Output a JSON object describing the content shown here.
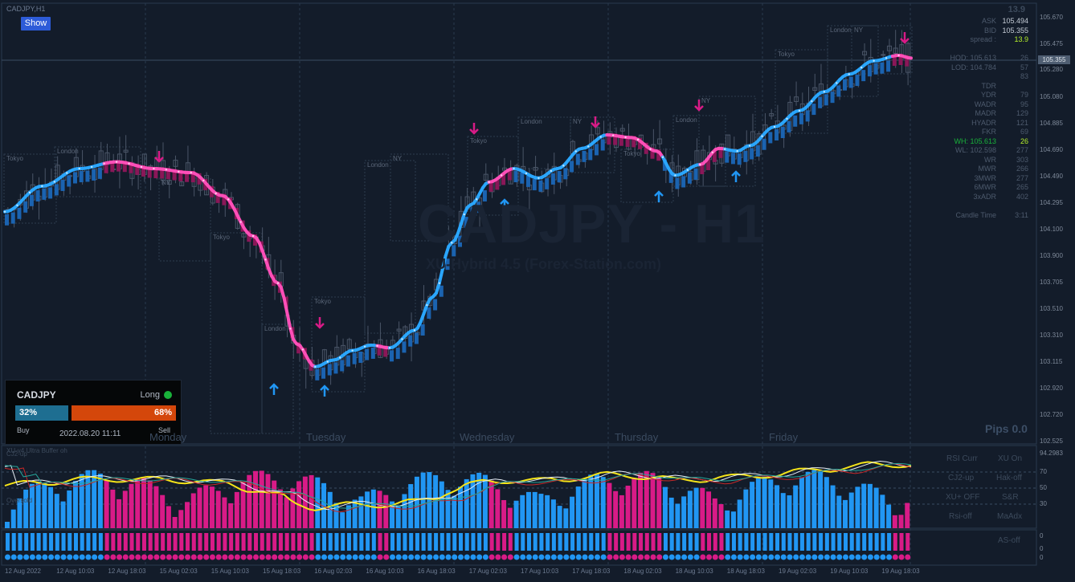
{
  "window_title": "CADJPY,H1",
  "show_button": "Show",
  "watermark": {
    "symbol": "CADJPY - H1",
    "subtitle": "XU-Hybrid 4.5 (Forex-Station.com)"
  },
  "panel": {
    "symbol": "CADJPY",
    "direction": "Long",
    "buy_pct": "32%",
    "sell_pct": "68%",
    "buy_label": "Buy",
    "sell_label": "Sell",
    "timestamp": "2022.08.20 11:11",
    "buy_color": "#1e6e91",
    "sell_color": "#d4470b",
    "direction_dot_color": "#19b23a"
  },
  "pips": "Pips 0.0",
  "stats": {
    "spread_top": "13.9",
    "rows": [
      {
        "k": "ASK",
        "v": "105.494"
      },
      {
        "k": "BID",
        "v": "105.355"
      },
      {
        "k": "spread :",
        "v": "13.9"
      },
      {
        "k": "",
        "v": ""
      },
      {
        "k": "HOD: 105.613",
        "v": "26"
      },
      {
        "k": "LOD: 104.784",
        "v": "57"
      },
      {
        "k": "",
        "v": "83"
      },
      {
        "k": "TDR",
        "v": ""
      },
      {
        "k": "YDR",
        "v": "79"
      },
      {
        "k": "WADR",
        "v": "95"
      },
      {
        "k": "MADR",
        "v": "129"
      },
      {
        "k": "HYADR",
        "v": "121"
      },
      {
        "k": "FKR",
        "v": "69"
      },
      {
        "k": "WH: 105.613",
        "v": "26"
      },
      {
        "k": "WL: 102.598",
        "v": "277"
      },
      {
        "k": "WR",
        "v": "303"
      },
      {
        "k": "MWR",
        "v": "266"
      },
      {
        "k": "3MWR",
        "v": "277"
      },
      {
        "k": "6MWR",
        "v": "265"
      },
      {
        "k": "3xADR",
        "v": "402"
      },
      {
        "k": "",
        "v": ""
      },
      {
        "k": "Candle Time",
        "v": "3:11"
      }
    ]
  },
  "price_axis": [
    "105.670",
    "105.475",
    "105.280",
    "105.080",
    "104.885",
    "104.690",
    "104.490",
    "104.295",
    "104.100",
    "103.900",
    "103.705",
    "103.510",
    "103.310",
    "103.115",
    "102.920",
    "102.720",
    "102.525"
  ],
  "current_price": "105.355",
  "day_labels": [
    "Monday",
    "Tuesday",
    "Wednesday",
    "Thursday",
    "Friday"
  ],
  "date_axis": [
    "12 Aug 2022",
    "12 Aug 10:03",
    "12 Aug 18:03",
    "15 Aug 02:03",
    "15 Aug 10:03",
    "15 Aug 18:03",
    "16 Aug 02:03",
    "16 Aug 10:03",
    "16 Aug 18:03",
    "17 Aug 02:03",
    "17 Aug 10:03",
    "17 Aug 18:03",
    "18 Aug 02:03",
    "18 Aug 10:03",
    "18 Aug 18:03",
    "19 Aug 02:03",
    "19 Aug 10:03",
    "19 Aug 18:03"
  ],
  "sessions": [
    {
      "label": "Tokyo"
    },
    {
      "label": "London"
    },
    {
      "label": "NY"
    },
    {
      "label": "Tokyo"
    },
    {
      "label": "London"
    },
    {
      "label": "Tokyo"
    },
    {
      "label": "London"
    },
    {
      "label": "NY"
    },
    {
      "label": "Tokyo"
    },
    {
      "label": "London"
    },
    {
      "label": "NY"
    },
    {
      "label": "Tokyo"
    },
    {
      "label": "London"
    },
    {
      "label": "NY"
    },
    {
      "label": "Tokyo"
    },
    {
      "label": "London"
    },
    {
      "label": "NY"
    }
  ],
  "oscillator": {
    "levels": [
      "70",
      "50",
      "30"
    ],
    "top_label": "XU-v4 Ultra Buffer oh",
    "mid_label": "CJ2-up",
    "oversold_label": "Oversold",
    "controls": [
      "RSI Curr",
      "XU On",
      "CJ2-up",
      "Hak-off",
      "XU+ OFF",
      "S&R",
      "Rsi-off",
      "MaAdx"
    ]
  },
  "strip_label": "AS-off",
  "strip_axis": [
    "0",
    "0",
    "0"
  ],
  "osc_right_top": "94.2983",
  "colors": {
    "bull": "#2196f3",
    "bear": "#d81b87",
    "trend_up": "#2aa6ff",
    "trend_down": "#ff4fb8",
    "yellow": "#f5e419",
    "grid": "#2a3a4e"
  },
  "arrows": [
    {
      "dir": "down",
      "label": "sell-arrow"
    },
    {
      "dir": "up",
      "label": "buy-arrow"
    },
    {
      "dir": "down",
      "label": "sell-arrow"
    },
    {
      "dir": "up",
      "label": "buy-arrow"
    },
    {
      "dir": "down",
      "label": "sell-arrow"
    },
    {
      "dir": "up",
      "label": "buy-arrow"
    },
    {
      "dir": "down",
      "label": "sell-arrow"
    },
    {
      "dir": "up",
      "label": "buy-arrow"
    },
    {
      "dir": "down",
      "label": "sell-arrow"
    },
    {
      "dir": "up",
      "label": "buy-arrow"
    },
    {
      "dir": "down",
      "label": "sell-arrow"
    }
  ]
}
